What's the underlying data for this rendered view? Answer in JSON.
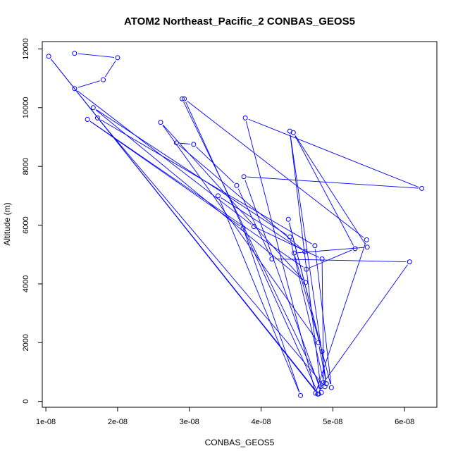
{
  "chart_data": {
    "type": "line",
    "title": "ATOM2 Northeast_Pacific_2 CONBAS_GEOS5",
    "xlabel": "CONBAS_GEOS5",
    "ylabel": "Altitude (m)",
    "xlim": [
      9.5e-09,
      6.45e-08
    ],
    "ylim": [
      -200,
      12250
    ],
    "x_ticks": [
      1e-08,
      2e-08,
      3e-08,
      4e-08,
      5e-08,
      6e-08
    ],
    "x_tick_labels": [
      "1e-08",
      "2e-08",
      "3e-08",
      "4e-08",
      "5e-08",
      "6e-08"
    ],
    "y_ticks": [
      0,
      2000,
      4000,
      6000,
      8000,
      10000,
      12000
    ],
    "y_tick_labels": [
      "0",
      "2000",
      "4000",
      "6000",
      "8000",
      "10000",
      "12000"
    ],
    "grid": false,
    "series": [
      {
        "color": "#0000ff",
        "marker": "open-circle",
        "points": [
          [
            1.4e-08,
            11850
          ],
          [
            2e-08,
            11700
          ],
          [
            1.8e-08,
            10950
          ],
          [
            1.4e-08,
            10650
          ],
          [
            3.9e-08,
            5950
          ],
          [
            4.85e-08,
            4850
          ],
          [
            4.87e-08,
            650
          ],
          [
            4.79e-08,
            250
          ],
          [
            1.04e-08,
            11750
          ],
          [
            4.8e-08,
            250
          ],
          [
            2.93e-08,
            10300
          ],
          [
            5.47e-08,
            5500
          ],
          [
            4.76e-08,
            280
          ],
          [
            3.78e-08,
            9650
          ],
          [
            6.24e-08,
            7250
          ],
          [
            3.76e-08,
            7650
          ],
          [
            4.84e-08,
            300
          ],
          [
            4.4e-08,
            9200
          ],
          [
            4.91e-08,
            600
          ],
          [
            4.8e-08,
            2000
          ],
          [
            2.6e-08,
            9500
          ],
          [
            4.62e-08,
            4050
          ],
          [
            1.66e-08,
            10000
          ],
          [
            4.4e-08,
            5600
          ],
          [
            4.89e-08,
            500
          ],
          [
            1.72e-08,
            9650
          ],
          [
            4.75e-08,
            5300
          ],
          [
            4.98e-08,
            470
          ],
          [
            4.38e-08,
            6200
          ],
          [
            4.85e-08,
            1700
          ],
          [
            4.46e-08,
            5050
          ],
          [
            5.48e-08,
            5250
          ],
          [
            4.45e-08,
            9150
          ],
          [
            5.31e-08,
            5200
          ],
          [
            4.63e-08,
            4500
          ],
          [
            1.58e-08,
            9600
          ],
          [
            3.75e-08,
            5900
          ],
          [
            4.55e-08,
            200
          ],
          [
            3.4e-08,
            7000
          ],
          [
            4.61e-08,
            5100
          ],
          [
            2.82e-08,
            8800
          ],
          [
            3.06e-08,
            8750
          ],
          [
            3.66e-08,
            7350
          ],
          [
            4.15e-08,
            4850
          ],
          [
            6.07e-08,
            4750
          ],
          [
            4.83e-08,
            500
          ],
          [
            2.9e-08,
            10300
          ]
        ]
      }
    ]
  }
}
